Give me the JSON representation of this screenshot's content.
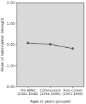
{
  "chart_data": {
    "type": "line",
    "categories": [
      "Pre WWII\n(1921-1942)",
      "Communism\n(1944-1989)",
      "Post-Comm\n(1991-1996)"
    ],
    "values": [
      0.08,
      0.02,
      -0.18
    ],
    "xlabel": "Ages in years grouped",
    "ylabel": "Mean of Nationalism Strength",
    "ylim": [
      -2.0,
      2.0
    ],
    "yticks": [
      {
        "value": -2.0,
        "label": "-2.00"
      },
      {
        "value": -1.0,
        "label": "-1.00"
      },
      {
        "value": 0.0,
        "label": "0.00"
      },
      {
        "value": 1.0,
        "label": "1.00"
      },
      {
        "value": 2.0,
        "label": "2.00"
      }
    ],
    "color": "#555555",
    "marker": "circle",
    "grid": false
  }
}
